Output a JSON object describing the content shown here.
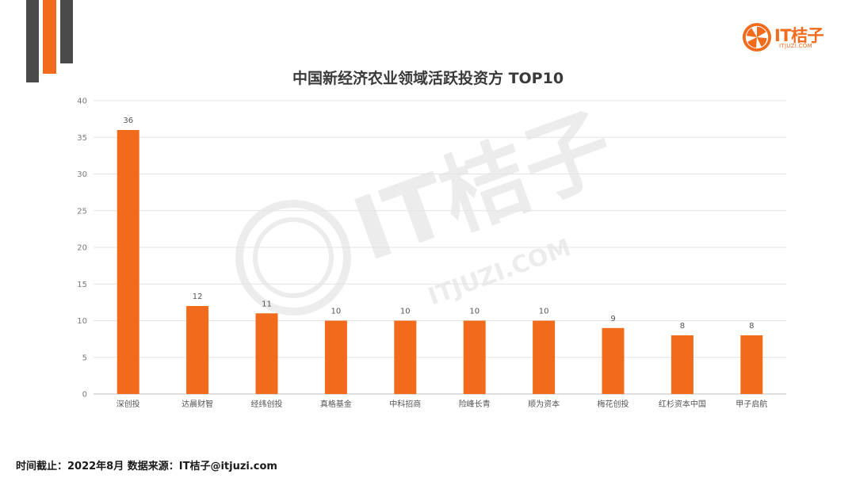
{
  "brand": {
    "name": "IT桔子",
    "domain": "ITJUZI.COM",
    "color": "#f26b1d"
  },
  "chart_data": {
    "type": "bar",
    "title": "中国新经济农业领域活跃投资方 TOP10",
    "categories": [
      "深创投",
      "达晨财智",
      "经纬创投",
      "真格基金",
      "中科招商",
      "险峰长青",
      "顺为资本",
      "梅花创投",
      "红杉资本中国",
      "甲子启航"
    ],
    "values": [
      36,
      12,
      11,
      10,
      10,
      10,
      10,
      9,
      8,
      8
    ],
    "ylim": [
      0,
      40
    ],
    "yticks": [
      0,
      5,
      10,
      15,
      20,
      25,
      30,
      35,
      40
    ],
    "grid": true,
    "bar_color": "#f26b1d",
    "xlabel": "",
    "ylabel": ""
  },
  "footer": {
    "text": "时间截止：2022年8月  数据来源：IT桔子@itjuzi.com"
  }
}
